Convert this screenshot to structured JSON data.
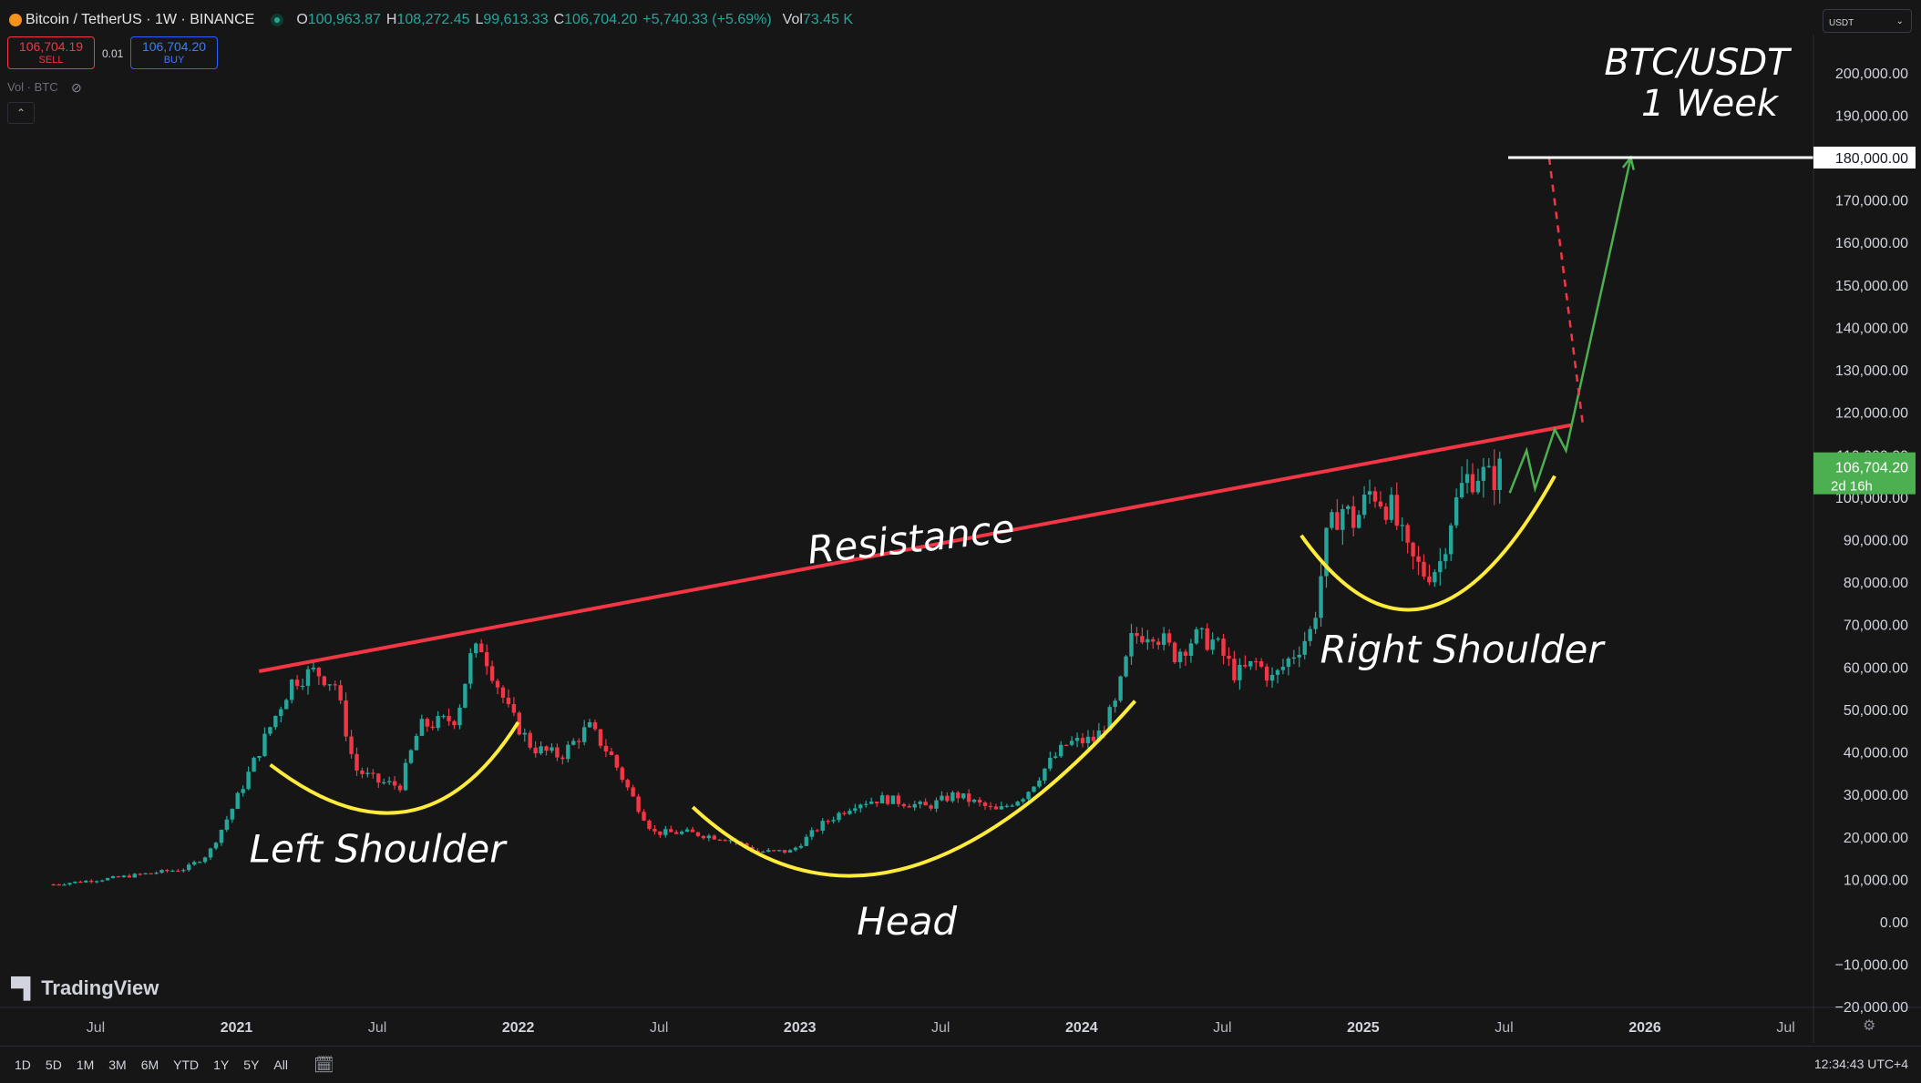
{
  "header": {
    "symbol": "Bitcoin / TetherUS · 1W · BINANCE",
    "o_label": "O",
    "o": "100,963.87",
    "h_label": "H",
    "h": "108,272.45",
    "l_label": "L",
    "l": "99,613.33",
    "c_label": "C",
    "c": "106,704.20",
    "change": "+5,740.33 (+5.69%)",
    "vol_label": "Vol",
    "vol": "73.45 K"
  },
  "trade": {
    "sell_price": "106,704.19",
    "sell_label": "SELL",
    "spread": "0.01",
    "buy_price": "106,704.20",
    "buy_label": "BUY"
  },
  "indicator": {
    "label": "Vol · BTC"
  },
  "currency": "USDT",
  "brand": "TradingView",
  "timeframes": [
    "1D",
    "5D",
    "1M",
    "3M",
    "6M",
    "YTD",
    "1Y",
    "5Y",
    "All"
  ],
  "clock": "12:34:43 UTC+4",
  "colors": {
    "up": "#26a69a",
    "down": "#f23645",
    "resistance": "#f23645",
    "curve": "#ffeb3b",
    "projection": "#4caf50",
    "target_line": "#ffffff"
  },
  "chart_data": {
    "type": "candlestick",
    "title": "BTC/USDT",
    "subtitle": "1 Week",
    "x_ticks": [
      "Jul",
      "2021",
      "Jul",
      "2022",
      "Jul",
      "2023",
      "Jul",
      "2024",
      "Jul",
      "2025",
      "Jul",
      "2026",
      "Jul"
    ],
    "y_ticks": [
      "200,000.00",
      "190,000.00",
      "170,000.00",
      "160,000.00",
      "150,000.00",
      "140,000.00",
      "130,000.00",
      "120,000.00",
      "110,000.00",
      "100,000.00",
      "90,000.00",
      "80,000.00",
      "70,000.00",
      "60,000.00",
      "50,000.00",
      "40,000.00",
      "30,000.00",
      "20,000.00",
      "10,000.00",
      "0.00",
      "−10,000.00",
      "−20,000.00"
    ],
    "y_range": [
      -20000,
      205000
    ],
    "x_range_years": [
      2020.35,
      2026.95
    ],
    "current_price": {
      "value": 106704.2,
      "label": "106,704.20",
      "countdown": "2d 16h"
    },
    "target": {
      "value": 180000,
      "label": "180,000.00"
    },
    "annotations": [
      "Resistance",
      "Left Shoulder",
      "Head",
      "Right Shoulder"
    ],
    "resistance_line": {
      "from": {
        "t": 2021.08,
        "v": 59000
      },
      "to": {
        "t": 2025.74,
        "v": 117000
      }
    },
    "curves": [
      {
        "name": "Left Shoulder",
        "from": {
          "t": 2021.12,
          "v": 37000
        },
        "ctrl": {
          "t": 2021.65,
          "v": 10000
        },
        "to": {
          "t": 2022.0,
          "v": 47000
        }
      },
      {
        "name": "Head",
        "from": {
          "t": 2022.62,
          "v": 27000
        },
        "ctrl": {
          "t": 2023.3,
          "v": -15000
        },
        "to": {
          "t": 2024.19,
          "v": 52000
        }
      },
      {
        "name": "Right Shoulder",
        "from": {
          "t": 2024.78,
          "v": 91000
        },
        "ctrl": {
          "t": 2025.22,
          "v": 50000
        },
        "to": {
          "t": 2025.68,
          "v": 105000
        }
      }
    ],
    "projection_path": [
      {
        "t": 2025.52,
        "v": 101000
      },
      {
        "t": 2025.58,
        "v": 111000
      },
      {
        "t": 2025.61,
        "v": 102000
      },
      {
        "t": 2025.68,
        "v": 116000
      },
      {
        "t": 2025.72,
        "v": 111000
      },
      {
        "t": 2025.95,
        "v": 180000
      }
    ],
    "dashed_red": {
      "from": {
        "t": 2025.66,
        "v": 180000
      },
      "to": {
        "t": 2025.78,
        "v": 117000
      }
    },
    "price_path": [
      {
        "t": 2020.35,
        "v": 8800
      },
      {
        "t": 2020.55,
        "v": 10200
      },
      {
        "t": 2020.7,
        "v": 11500
      },
      {
        "t": 2020.82,
        "v": 12500
      },
      {
        "t": 2020.9,
        "v": 16000
      },
      {
        "t": 2020.98,
        "v": 26000
      },
      {
        "t": 2021.05,
        "v": 36000
      },
      {
        "t": 2021.12,
        "v": 46000
      },
      {
        "t": 2021.2,
        "v": 57000
      },
      {
        "t": 2021.28,
        "v": 59000
      },
      {
        "t": 2021.35,
        "v": 56000
      },
      {
        "t": 2021.42,
        "v": 36000
      },
      {
        "t": 2021.5,
        "v": 33000
      },
      {
        "t": 2021.58,
        "v": 32000
      },
      {
        "t": 2021.65,
        "v": 46000
      },
      {
        "t": 2021.72,
        "v": 47000
      },
      {
        "t": 2021.78,
        "v": 48000
      },
      {
        "t": 2021.83,
        "v": 62000
      },
      {
        "t": 2021.87,
        "v": 65000
      },
      {
        "t": 2021.92,
        "v": 57000
      },
      {
        "t": 2021.97,
        "v": 49000
      },
      {
        "t": 2022.05,
        "v": 41000
      },
      {
        "t": 2022.15,
        "v": 39000
      },
      {
        "t": 2022.25,
        "v": 46000
      },
      {
        "t": 2022.33,
        "v": 39000
      },
      {
        "t": 2022.4,
        "v": 30000
      },
      {
        "t": 2022.48,
        "v": 21000
      },
      {
        "t": 2022.6,
        "v": 21000
      },
      {
        "t": 2022.75,
        "v": 19500
      },
      {
        "t": 2022.85,
        "v": 16500
      },
      {
        "t": 2022.97,
        "v": 16600
      },
      {
        "t": 2023.08,
        "v": 23000
      },
      {
        "t": 2023.2,
        "v": 28000
      },
      {
        "t": 2023.3,
        "v": 29000
      },
      {
        "t": 2023.45,
        "v": 27000
      },
      {
        "t": 2023.55,
        "v": 30000
      },
      {
        "t": 2023.7,
        "v": 26000
      },
      {
        "t": 2023.8,
        "v": 30000
      },
      {
        "t": 2023.88,
        "v": 37000
      },
      {
        "t": 2023.95,
        "v": 42000
      },
      {
        "t": 2024.05,
        "v": 43000
      },
      {
        "t": 2024.12,
        "v": 51000
      },
      {
        "t": 2024.18,
        "v": 67000
      },
      {
        "t": 2024.25,
        "v": 69000
      },
      {
        "t": 2024.33,
        "v": 63000
      },
      {
        "t": 2024.4,
        "v": 67000
      },
      {
        "t": 2024.47,
        "v": 66000
      },
      {
        "t": 2024.55,
        "v": 58000
      },
      {
        "t": 2024.62,
        "v": 61000
      },
      {
        "t": 2024.68,
        "v": 57000
      },
      {
        "t": 2024.75,
        "v": 63000
      },
      {
        "t": 2024.82,
        "v": 69000
      },
      {
        "t": 2024.87,
        "v": 90000
      },
      {
        "t": 2024.92,
        "v": 98000
      },
      {
        "t": 2024.97,
        "v": 94000
      },
      {
        "t": 2025.03,
        "v": 102000
      },
      {
        "t": 2025.1,
        "v": 97000
      },
      {
        "t": 2025.16,
        "v": 86000
      },
      {
        "t": 2025.22,
        "v": 82000
      },
      {
        "t": 2025.27,
        "v": 84000
      },
      {
        "t": 2025.31,
        "v": 95000
      },
      {
        "t": 2025.36,
        "v": 104000
      },
      {
        "t": 2025.41,
        "v": 106000
      },
      {
        "t": 2025.45,
        "v": 104000
      },
      {
        "t": 2025.49,
        "v": 106704
      }
    ]
  }
}
